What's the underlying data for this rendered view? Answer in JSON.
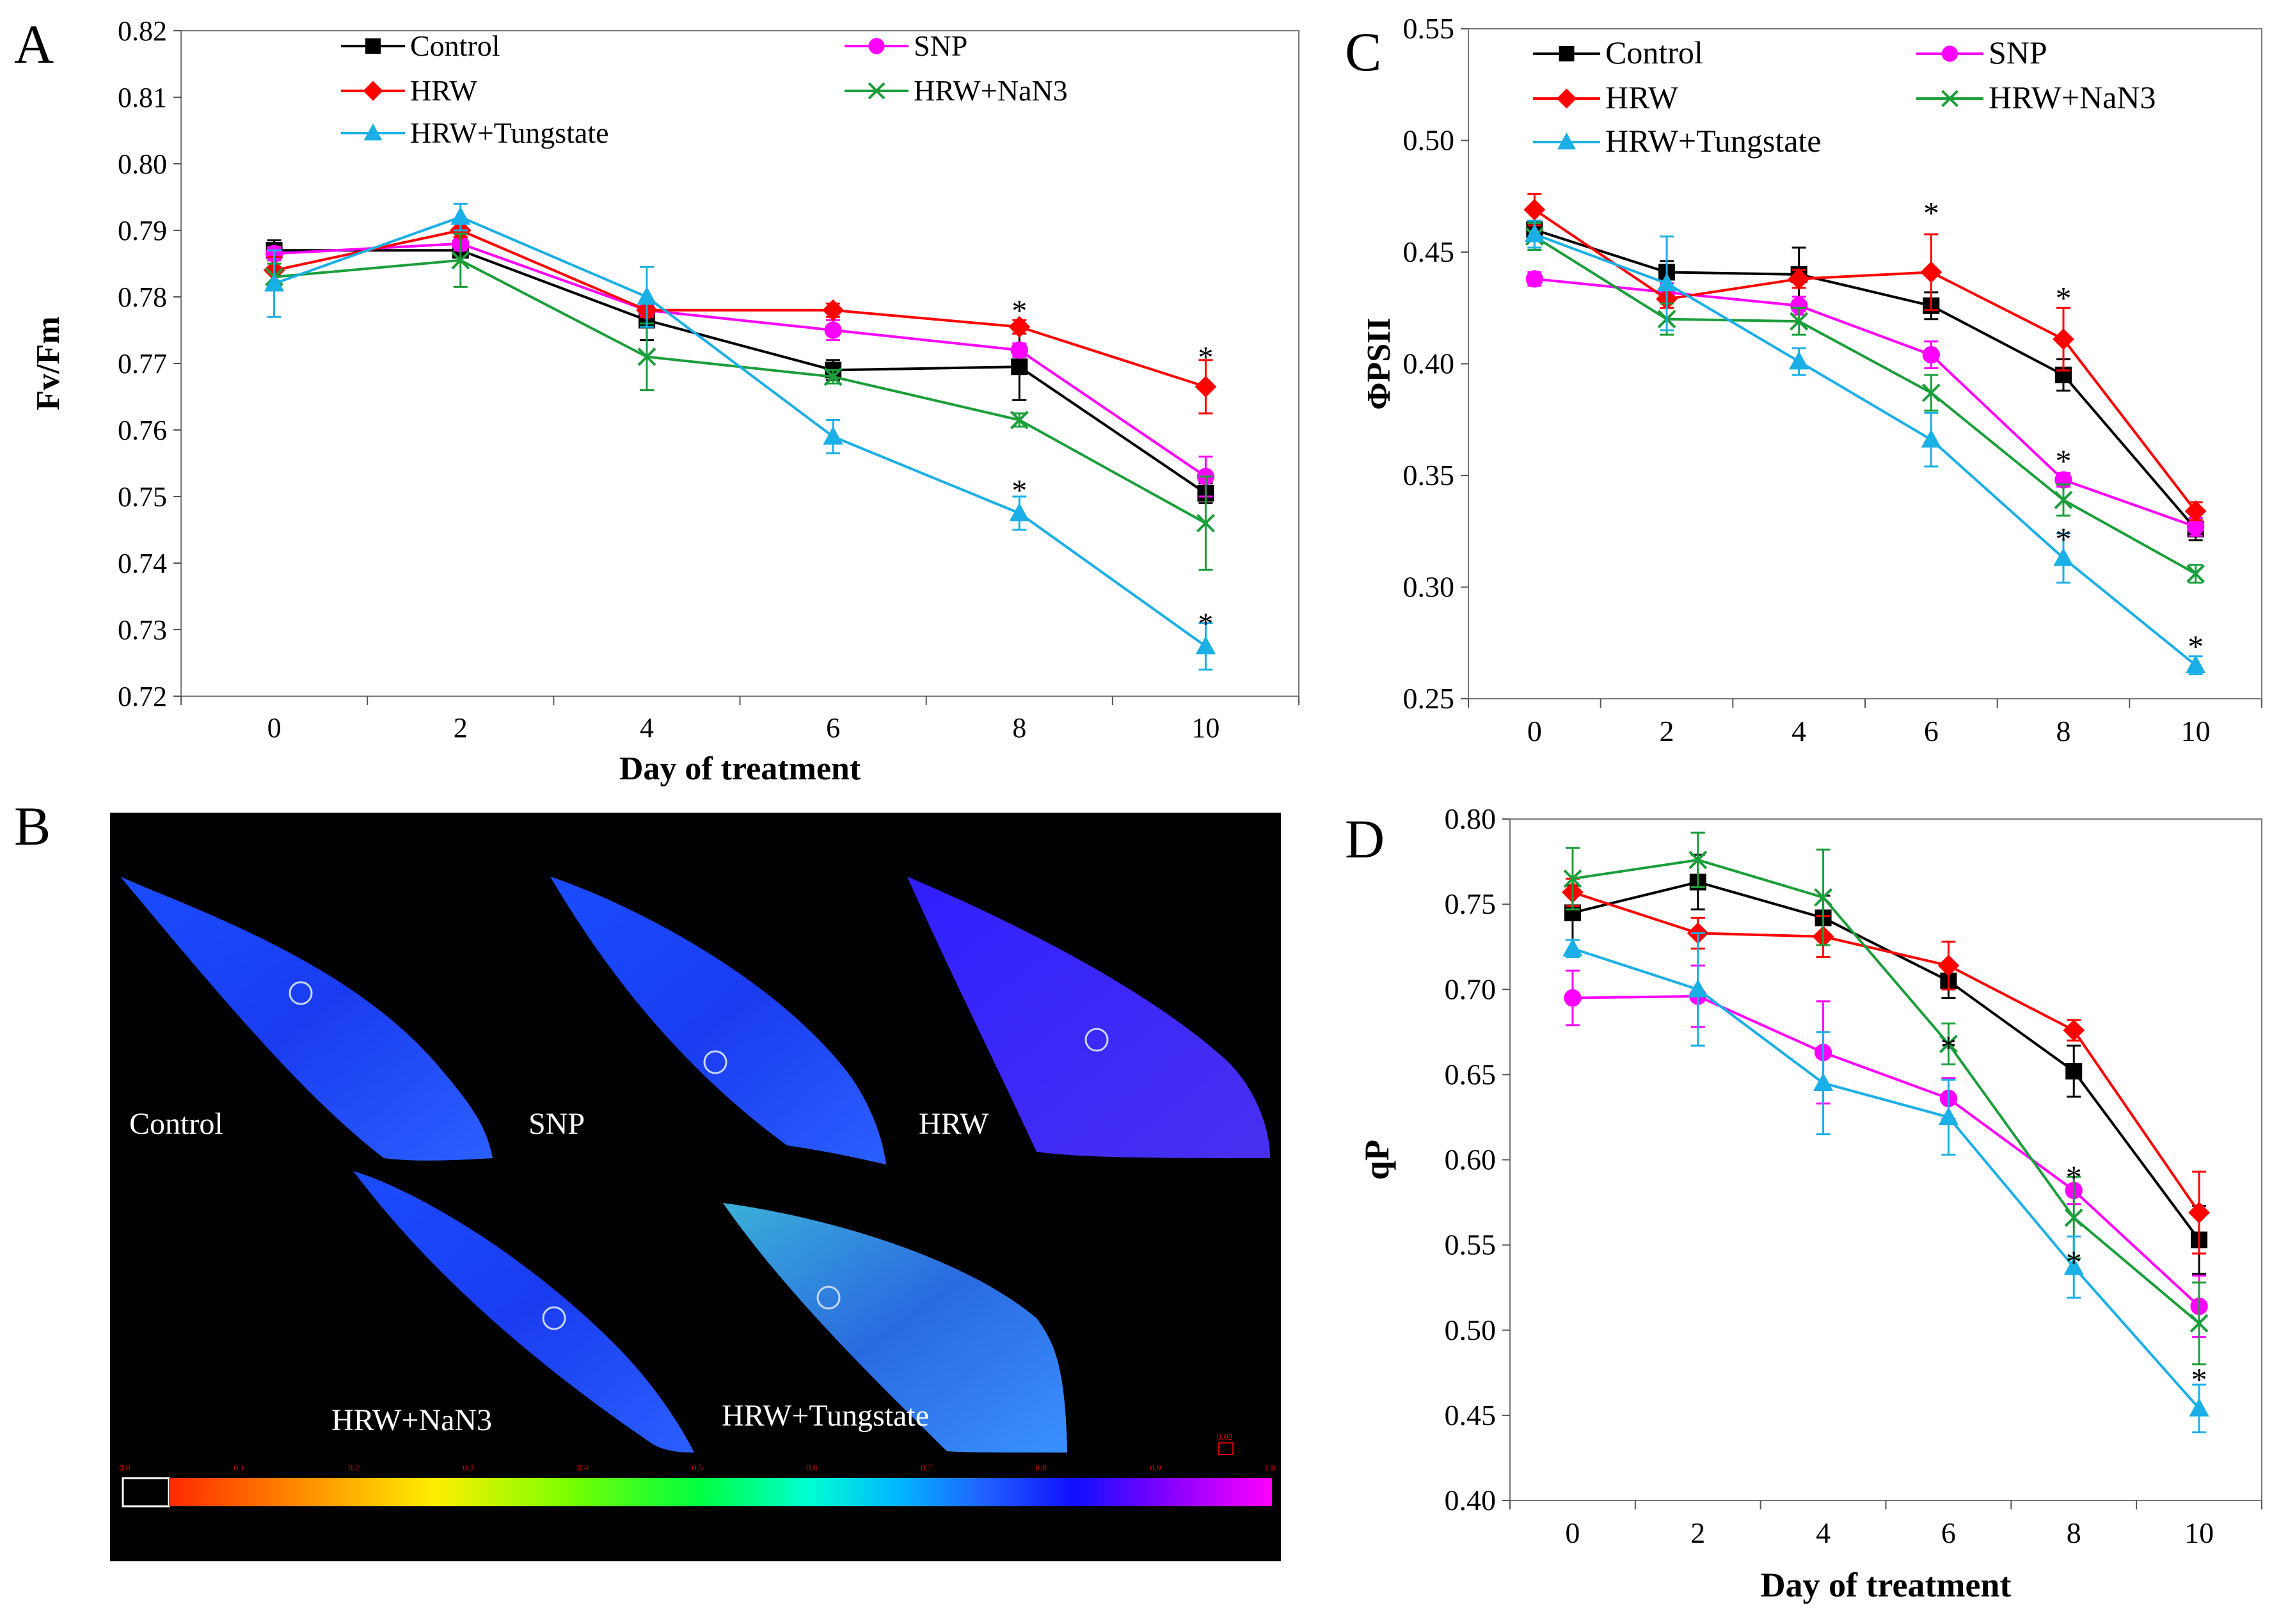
{
  "series_styles": [
    {
      "name": "Control",
      "color": "#000000",
      "marker": "square"
    },
    {
      "name": "SNP",
      "color": "#ff00ff",
      "marker": "circle"
    },
    {
      "name": "HRW",
      "color": "#ff0000",
      "marker": "diamond"
    },
    {
      "name": "HRW+NaN3",
      "color": "#1a9e3a",
      "marker": "x"
    },
    {
      "name": "HRW+Tungstate",
      "color": "#1aafe6",
      "marker": "triangle"
    }
  ],
  "chart_data": [
    {
      "panel": "A",
      "type": "line",
      "title": "",
      "xlabel": "Day of treatment",
      "ylabel": "Fv/Fm",
      "x": [
        0,
        2,
        4,
        6,
        8,
        10
      ],
      "ylim": [
        0.72,
        0.82
      ],
      "yticks": [
        "0.72",
        "0.73",
        "0.74",
        "0.75",
        "0.76",
        "0.77",
        "0.78",
        "0.79",
        "0.80",
        "0.81",
        "0.82"
      ],
      "xticks": [
        "0",
        "2",
        "4",
        "6",
        "8",
        "10"
      ],
      "series": [
        {
          "name": "Control",
          "values": [
            0.787,
            0.787,
            0.7765,
            0.769,
            0.7695,
            0.7505
          ],
          "errors": [
            0.0015,
            0.001,
            0.003,
            0.0015,
            0.005,
            0.0015
          ]
        },
        {
          "name": "SNP",
          "values": [
            0.7865,
            0.788,
            0.778,
            0.775,
            0.772,
            0.753
          ],
          "errors": [
            0.001,
            0.001,
            0.001,
            0.0015,
            0.001,
            0.003
          ]
        },
        {
          "name": "HRW",
          "values": [
            0.784,
            0.79,
            0.778,
            0.778,
            0.7755,
            0.7665
          ],
          "errors": [
            0.002,
            0.001,
            0.001,
            0.001,
            0.001,
            0.004
          ]
        },
        {
          "name": "HRW+NaN3",
          "values": [
            0.783,
            0.7855,
            0.771,
            0.768,
            0.7615,
            0.746
          ],
          "errors": [
            0.002,
            0.004,
            0.005,
            0.001,
            0.001,
            0.007
          ]
        },
        {
          "name": "HRW+Tungstate",
          "values": [
            0.782,
            0.792,
            0.78,
            0.759,
            0.7475,
            0.7275
          ],
          "errors": [
            0.005,
            0.002,
            0.0045,
            0.0025,
            0.0025,
            0.0035
          ]
        }
      ],
      "annotations": [
        {
          "text": "*",
          "x": 8,
          "y": 0.7785
        },
        {
          "text": "*",
          "x": 10,
          "y": 0.7715
        },
        {
          "text": "*",
          "x": 8,
          "y": 0.7515
        },
        {
          "text": "*",
          "x": 10,
          "y": 0.7315
        }
      ]
    },
    {
      "panel": "C",
      "type": "line",
      "title": "",
      "xlabel": "",
      "ylabel": "ΦPSII",
      "x": [
        0,
        2,
        4,
        6,
        8,
        10
      ],
      "ylim": [
        0.25,
        0.55
      ],
      "yticks": [
        "0.25",
        "0.30",
        "0.35",
        "0.40",
        "0.45",
        "0.50",
        "0.55"
      ],
      "xticks": [
        "0",
        "2",
        "4",
        "6",
        "8",
        "10"
      ],
      "series": [
        {
          "name": "Control",
          "values": [
            0.46,
            0.441,
            0.44,
            0.426,
            0.395,
            0.326
          ],
          "errors": [
            0.004,
            0.005,
            0.012,
            0.006,
            0.007,
            0.005
          ]
        },
        {
          "name": "SNP",
          "values": [
            0.438,
            0.432,
            0.426,
            0.404,
            0.348,
            0.327
          ],
          "errors": [
            0.003,
            0.004,
            0.004,
            0.006,
            0.003,
            0.004
          ]
        },
        {
          "name": "HRW",
          "values": [
            0.469,
            0.429,
            0.438,
            0.441,
            0.411,
            0.334
          ],
          "errors": [
            0.007,
            0.004,
            0.004,
            0.017,
            0.014,
            0.004
          ]
        },
        {
          "name": "HRW+NaN3",
          "values": [
            0.457,
            0.42,
            0.419,
            0.387,
            0.339,
            0.306
          ],
          "errors": [
            0.006,
            0.007,
            0.006,
            0.008,
            0.007,
            0.004
          ]
        },
        {
          "name": "HRW+Tungstate",
          "values": [
            0.458,
            0.436,
            0.401,
            0.366,
            0.313,
            0.265
          ],
          "errors": [
            0.006,
            0.021,
            0.006,
            0.012,
            0.011,
            0.004
          ]
        }
      ],
      "annotations": [
        {
          "text": "*",
          "x": 6,
          "y": 0.469
        },
        {
          "text": "*",
          "x": 8,
          "y": 0.431
        },
        {
          "text": "*",
          "x": 8,
          "y": 0.358
        },
        {
          "text": "*",
          "x": 8,
          "y": 0.323
        },
        {
          "text": "*",
          "x": 10,
          "y": 0.275
        }
      ]
    },
    {
      "panel": "D",
      "type": "line",
      "title": "",
      "xlabel": "Day of treatment",
      "ylabel": "qP",
      "x": [
        0,
        2,
        4,
        6,
        8,
        10
      ],
      "ylim": [
        0.4,
        0.8
      ],
      "yticks": [
        "0.40",
        "0.45",
        "0.50",
        "0.55",
        "0.60",
        "0.65",
        "0.70",
        "0.75",
        "0.80"
      ],
      "xticks": [
        "0",
        "2",
        "4",
        "6",
        "8",
        "10"
      ],
      "series": [
        {
          "name": "Control",
          "values": [
            0.745,
            0.763,
            0.742,
            0.705,
            0.652,
            0.553
          ],
          "errors": [
            0.016,
            0.016,
            0.013,
            0.01,
            0.015,
            0.02
          ]
        },
        {
          "name": "SNP",
          "values": [
            0.695,
            0.696,
            0.663,
            0.636,
            0.582,
            0.514
          ],
          "errors": [
            0.016,
            0.018,
            0.03,
            0.012,
            0.008,
            0.018
          ]
        },
        {
          "name": "HRW",
          "values": [
            0.757,
            0.733,
            0.731,
            0.714,
            0.676,
            0.569
          ],
          "errors": [
            0.008,
            0.009,
            0.012,
            0.014,
            0.006,
            0.024
          ]
        },
        {
          "name": "HRW+NaN3",
          "values": [
            0.765,
            0.776,
            0.754,
            0.668,
            0.566,
            0.504
          ],
          "errors": [
            0.018,
            0.016,
            0.028,
            0.012,
            0.024,
            0.024
          ]
        },
        {
          "name": "HRW+Tungstate",
          "values": [
            0.724,
            0.7,
            0.645,
            0.625,
            0.537,
            0.454
          ],
          "errors": [
            0.005,
            0.033,
            0.03,
            0.022,
            0.018,
            0.014
          ]
        }
      ],
      "annotations": [
        {
          "text": "*",
          "x": 6,
          "y": 0.668
        },
        {
          "text": "*",
          "x": 8,
          "y": 0.592
        },
        {
          "text": "*",
          "x": 8,
          "y": 0.542
        },
        {
          "text": "*",
          "x": 10,
          "y": 0.473
        }
      ]
    }
  ],
  "panel_labels": {
    "a": "A",
    "b": "B",
    "c": "C",
    "d": "D"
  },
  "leaves": {
    "control": "Control",
    "snp": "SNP",
    "hrw": "HRW",
    "hrw_nan3": "HRW+NaN3",
    "hrw_tungstate": "HRW+Tungstate"
  },
  "colorbar": {
    "ticks": [
      "0.0",
      "0.1",
      "0.2",
      "0.3",
      "0.4",
      "0.5",
      "0.6",
      "0.7",
      "0.8",
      "0.9",
      "1.0"
    ],
    "side_label": "0.02",
    "colors": [
      "#000000",
      "#ff2a00",
      "#ff8c00",
      "#ffee00",
      "#7cff00",
      "#00ff40",
      "#00ffd0",
      "#00b8ff",
      "#2060ff",
      "#1010ff",
      "#8a00ff",
      "#ff00ff"
    ]
  }
}
